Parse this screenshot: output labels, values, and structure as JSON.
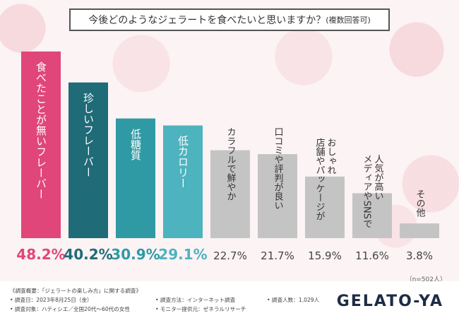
{
  "title": {
    "main": "今後どのようなジェラートを食べたいと思いますか？",
    "note": "(複数回答可)"
  },
  "colors": {
    "pink": "#e0467a",
    "dark_teal": "#1f6b78",
    "teal": "#2f9aa4",
    "light_teal": "#4db3bf",
    "gray": "#c4c4c4"
  },
  "sample_size": "（n=502人）",
  "chart_data": {
    "type": "bar",
    "categories": [
      "食べたことが無いフレーバー",
      "珍しいフレーバー",
      "低糖質",
      "低カロリー",
      "カラフルで鮮やか",
      "口コミや評判が良い",
      "店舗やパッケージがおしゃれ",
      "メディアやSNSで人気が高い",
      "その他"
    ],
    "values": [
      48.2,
      40.2,
      30.9,
      29.1,
      22.7,
      21.7,
      15.9,
      11.6,
      3.8
    ],
    "value_labels": [
      "48.2%",
      "40.2%",
      "30.9%",
      "29.1%",
      "22.7%",
      "21.7%",
      "15.9%",
      "11.6%",
      "3.8%"
    ],
    "ylim": [
      0,
      50
    ],
    "bar_colors": [
      "#e0467a",
      "#1f6b78",
      "#2f9aa4",
      "#4db3bf",
      "#c4c4c4",
      "#c4c4c4",
      "#c4c4c4",
      "#c4c4c4",
      "#c4c4c4"
    ],
    "label_lines": [
      [
        "食べたことが無いフレーバー"
      ],
      [
        "珍しいフレーバー"
      ],
      [
        "低糖質"
      ],
      [
        "低カロリー"
      ],
      [
        "カラフルで鮮やか"
      ],
      [
        "口コミや評判が良い"
      ],
      [
        "おしゃれ",
        "店舗やパッケージが"
      ],
      [
        "人気が高い",
        "メディアやSNSで"
      ],
      [
        "その他"
      ]
    ]
  },
  "footer": {
    "overview": "《調査概要：「ジェラートの楽しみ方」に関する調査》",
    "date": "• 調査日：2023年8月25日（金）",
    "target": "• 調査対象：ハティシエ／全国20代～60代の女性",
    "method": "• 調査方法：インターネット調査",
    "monitor": "• モニター提供元：ゼネラルリサーチ",
    "count": "• 調査人数：1,029人"
  },
  "logo": "GELATO-YA"
}
